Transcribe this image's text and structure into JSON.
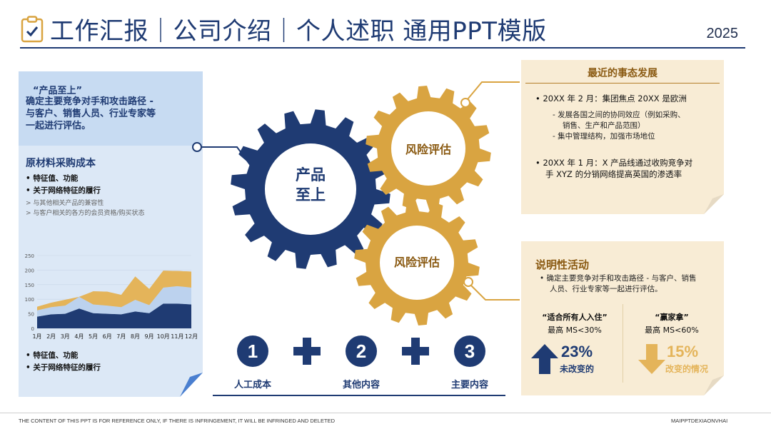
{
  "header": {
    "title": "工作汇报｜公司介绍｜个人述职 通用PPT模版",
    "year": "2025",
    "icon": "clipboard-check-icon"
  },
  "left_panel": {
    "quote": "“产品至上”",
    "desc": [
      "确定主要竞争对手和攻击路径 -",
      "与客户、销售人员、行业专家等",
      "一起进行评估。"
    ],
    "heading": "原材料采购成本",
    "bullets_top": [
      "特征值、功能",
      "关于网络特征的履行"
    ],
    "subs": [
      "与其他相关产品的兼容性",
      "与客户相关的各方的会员资格/购买状态"
    ],
    "bullets_bottom": [
      "特征值、功能",
      "关于网络特征的履行"
    ]
  },
  "chart_data": {
    "type": "area",
    "categories": [
      "1月",
      "2月",
      "3月",
      "4月",
      "5月",
      "6月",
      "7月",
      "8月",
      "9月",
      "10月",
      "11月",
      "12月"
    ],
    "y_ticks": [
      "0",
      "50",
      "100",
      "150",
      "200",
      "250"
    ],
    "ylim": [
      0,
      250
    ],
    "stacked": true,
    "series": [
      {
        "values": [
          40,
          48,
          50,
          68,
          52,
          50,
          48,
          58,
          52,
          85,
          85,
          82
        ],
        "color": "#1f3b73"
      },
      {
        "values": [
          22,
          25,
          28,
          40,
          30,
          28,
          25,
          40,
          28,
          55,
          60,
          58
        ],
        "color": "#bcd2ee"
      },
      {
        "values": [
          12,
          15,
          20,
          0,
          45,
          48,
          42,
          80,
          55,
          58,
          52,
          55
        ],
        "color": "#e4b45a"
      }
    ]
  },
  "gears": {
    "main": "产品\n至上",
    "main_line1": "产品",
    "main_line2": "至上",
    "g2": "风险评估",
    "g3": "风险评估"
  },
  "right_top": {
    "title": "最近的事态发展",
    "item1": "20XX 年 2 月：集团焦点 20XX 是欧洲",
    "sub1": [
      "发展各国之间的协同效应（例如采购、",
      "销售、生产和产品范围）"
    ],
    "sub2": "集中管理结构，加强市场地位",
    "item2": [
      "20XX 年 1 月：X 产品线通过收购竞争对",
      "手 XYZ 的分销网络提高英国的渗透率"
    ]
  },
  "right_bottom": {
    "title": "说明性活动",
    "desc": [
      "确定主要竞争对手和攻击路径 - 与客户、销售",
      "人员、行业专家等一起进行评估。"
    ],
    "col1": {
      "title": "“适合所有人入住”",
      "sub": "最高 MS<30%",
      "pct": "23%",
      "label": "未改变的"
    },
    "col2": {
      "title": "“赢家拿”",
      "sub": "最高 MS<60%",
      "pct": "15%",
      "label": "改变的情况"
    }
  },
  "bottom_items": [
    {
      "num": "1",
      "label": "人工成本"
    },
    {
      "num": "2",
      "label": "其他内容"
    },
    {
      "num": "3",
      "label": "主要内容"
    }
  ],
  "footer": {
    "text": "THE CONTENT OF THIS PPT IS FOR REFERENCE ONLY, IF THERE IS INFRINGEMENT, IT WILL BE INFRINGED AND DELETED",
    "right": "MAIPPTDEXIAONVHAI"
  },
  "colors": {
    "navy": "#1f3b73",
    "gold": "#d9a441",
    "cream": "#f8ecd5",
    "light_blue": "#dce8f6"
  }
}
